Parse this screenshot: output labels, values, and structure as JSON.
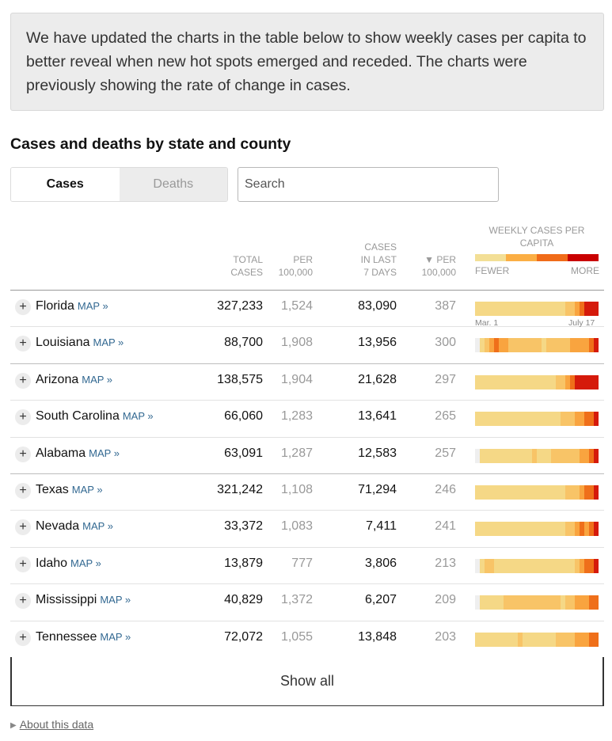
{
  "notice": "We have updated the charts in the table below to show weekly cases per capita to better reveal when new hot spots emerged and receded. The charts were previously showing the rate of change in cases.",
  "heading": "Cases and deaths by state and county",
  "tabs": {
    "cases": "Cases",
    "deaths": "Deaths"
  },
  "search": {
    "placeholder": "Search"
  },
  "columns": {
    "total_1": "Total",
    "total_2": "cases",
    "per_1": "Per",
    "per_2": "100,000",
    "last7_1": "Cases",
    "last7_2": "in last",
    "last7_3": "7 days",
    "per7_1": "▼ Per",
    "per7_2": "100,000",
    "weekly": "Weekly cases per capita",
    "fewer": "Fewer",
    "more": "More"
  },
  "legend_colors": [
    "#f3df96",
    "#fbae44",
    "#f06b19",
    "#c90000"
  ],
  "palette": [
    "#efefef",
    "#f3e2a2",
    "#f5d886",
    "#f8c467",
    "#f9a43f",
    "#ef6f1a",
    "#d51a0b"
  ],
  "spark_labels": {
    "start": "Mar. 1",
    "end": "July 17"
  },
  "rows": [
    {
      "name": "Florida",
      "map": "MAP »",
      "total": "327,233",
      "per": "1,524",
      "cases7": "83,090",
      "per7": "387",
      "weeks": [
        2,
        2,
        2,
        2,
        2,
        2,
        2,
        2,
        2,
        2,
        2,
        2,
        2,
        2,
        2,
        2,
        2,
        2,
        2,
        3,
        3,
        4,
        5,
        6,
        6,
        6
      ]
    },
    {
      "name": "Louisiana",
      "map": "MAP »",
      "total": "88,700",
      "per": "1,908",
      "cases7": "13,956",
      "per7": "300",
      "weeks": [
        0,
        2,
        3,
        4,
        5,
        4,
        4,
        3,
        3,
        3,
        3,
        3,
        3,
        3,
        2,
        3,
        3,
        3,
        3,
        3,
        4,
        4,
        4,
        4,
        5,
        6
      ]
    },
    {
      "name": "Arizona",
      "map": "MAP »",
      "total": "138,575",
      "per": "1,904",
      "cases7": "21,628",
      "per7": "297",
      "weeks": [
        2,
        2,
        2,
        2,
        2,
        2,
        2,
        2,
        2,
        2,
        2,
        2,
        2,
        2,
        2,
        2,
        2,
        3,
        3,
        4,
        5,
        6,
        6,
        6,
        6,
        6
      ]
    },
    {
      "name": "South Carolina",
      "map": "MAP »",
      "total": "66,060",
      "per": "1,283",
      "cases7": "13,641",
      "per7": "265",
      "weeks": [
        2,
        2,
        2,
        2,
        2,
        2,
        2,
        2,
        2,
        2,
        2,
        2,
        2,
        2,
        2,
        2,
        2,
        2,
        3,
        3,
        3,
        4,
        4,
        5,
        5,
        6
      ]
    },
    {
      "name": "Alabama",
      "map": "MAP »",
      "total": "63,091",
      "per": "1,287",
      "cases7": "12,583",
      "per7": "257",
      "weeks": [
        0,
        2,
        2,
        2,
        2,
        2,
        2,
        2,
        2,
        2,
        2,
        2,
        3,
        2,
        2,
        2,
        3,
        3,
        3,
        3,
        3,
        3,
        4,
        4,
        5,
        6
      ]
    },
    {
      "name": "Texas",
      "map": "MAP »",
      "total": "321,242",
      "per": "1,108",
      "cases7": "71,294",
      "per7": "246",
      "weeks": [
        2,
        2,
        2,
        2,
        2,
        2,
        2,
        2,
        2,
        2,
        2,
        2,
        2,
        2,
        2,
        2,
        2,
        2,
        2,
        3,
        3,
        3,
        4,
        5,
        5,
        6
      ]
    },
    {
      "name": "Nevada",
      "map": "MAP »",
      "total": "33,372",
      "per": "1,083",
      "cases7": "7,411",
      "per7": "241",
      "weeks": [
        2,
        2,
        2,
        2,
        2,
        2,
        2,
        2,
        2,
        2,
        2,
        2,
        2,
        2,
        2,
        2,
        2,
        2,
        2,
        3,
        3,
        4,
        5,
        4,
        5,
        6
      ]
    },
    {
      "name": "Idaho",
      "map": "MAP »",
      "total": "13,879",
      "per": "777",
      "cases7": "3,806",
      "per7": "213",
      "weeks": [
        0,
        2,
        3,
        3,
        2,
        2,
        2,
        2,
        2,
        2,
        2,
        2,
        2,
        2,
        2,
        2,
        2,
        2,
        2,
        2,
        2,
        3,
        4,
        5,
        5,
        6
      ]
    },
    {
      "name": "Mississippi",
      "map": "MAP »",
      "total": "40,829",
      "per": "1,372",
      "cases7": "6,207",
      "per7": "209",
      "weeks": [
        0,
        2,
        2,
        2,
        2,
        2,
        3,
        3,
        3,
        3,
        3,
        3,
        3,
        3,
        3,
        3,
        3,
        3,
        2,
        3,
        3,
        4,
        4,
        4,
        5,
        5
      ]
    },
    {
      "name": "Tennessee",
      "map": "MAP »",
      "total": "72,072",
      "per": "1,055",
      "cases7": "13,848",
      "per7": "203",
      "weeks": [
        2,
        2,
        2,
        2,
        2,
        2,
        2,
        2,
        2,
        3,
        2,
        2,
        2,
        2,
        2,
        2,
        2,
        3,
        3,
        3,
        3,
        4,
        4,
        4,
        5,
        5
      ]
    }
  ],
  "show_all": "Show all",
  "about": "About this data"
}
